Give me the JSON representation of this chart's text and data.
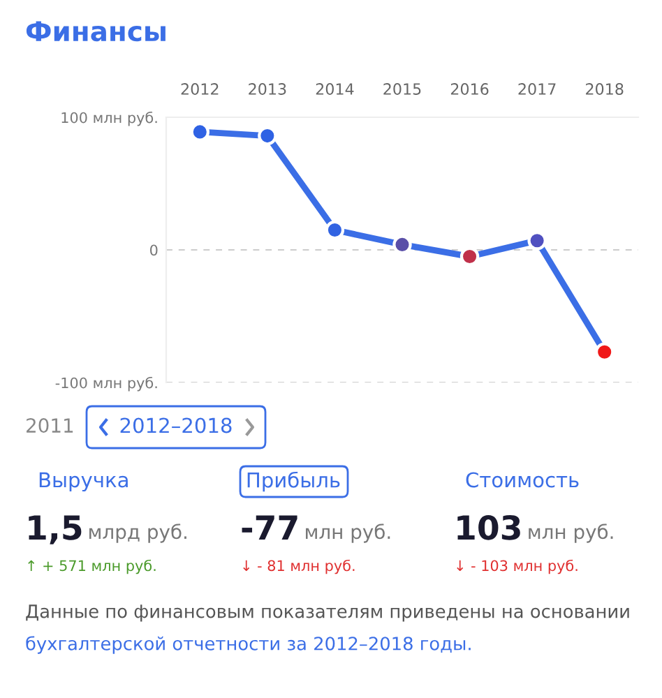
{
  "chart_data": {
    "type": "line",
    "title": "Финансы",
    "categories": [
      "2012",
      "2013",
      "2014",
      "2015",
      "2016",
      "2017",
      "2018"
    ],
    "series": [
      {
        "color": "#3b6ee6",
        "colors": [
          "#2f62e4",
          "#2f62e4",
          "#3163e2",
          "#5a4fa8",
          "#c0304a",
          "#5050c0",
          "#f01818"
        ],
        "values": [
          89,
          86,
          15,
          4,
          -5,
          7,
          -77
        ]
      }
    ],
    "ylim": [
      -100,
      100
    ],
    "yticks": [
      {
        "value": 100,
        "label": "100 млн руб."
      },
      0,
      {
        "value": -100,
        "label": "-100 млн руб."
      }
    ],
    "grid": "y",
    "marker": "circle",
    "line_style": "solid",
    "annotations": [
      "2011",
      "2012–2018",
      "Выручка",
      "Прибыль",
      "Стоимость",
      "1,5",
      "млрд руб.",
      "-77",
      "млн руб.",
      "103",
      "млн руб.",
      "↑ + 571 млн руб.",
      "↓ - 81 млн руб.",
      "↓ - 103 млн руб.",
      "Данные по финансовым показателям приведены на основании",
      "бухгалтерской отчетности за 2012–2018 годы."
    ]
  }
}
